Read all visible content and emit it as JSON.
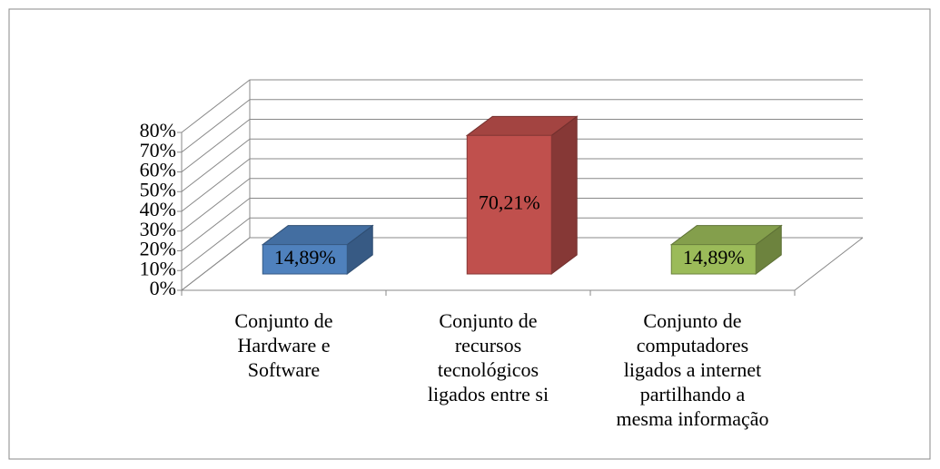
{
  "chart_data": {
    "type": "bar3d",
    "categories": [
      "Conjunto de\nHardware e\nSoftware",
      "Conjunto de\nrecursos\ntecnológicos\nligados entre si",
      "Conjunto de\ncomputadores\nligados a internet\npartilhando a\nmesma informação"
    ],
    "values": [
      14.89,
      70.21,
      14.89
    ],
    "value_labels": [
      "14,89%",
      "70,21%",
      "14,89%"
    ],
    "colors": [
      "#4f81bd",
      "#c0504d",
      "#9bbb59"
    ],
    "ylim": [
      0,
      80
    ],
    "yticks": [
      {
        "value": 0,
        "label": "0%"
      },
      {
        "value": 10,
        "label": "10%"
      },
      {
        "value": 20,
        "label": "20%"
      },
      {
        "value": 30,
        "label": "30%"
      },
      {
        "value": 40,
        "label": "40%"
      },
      {
        "value": 50,
        "label": "50%"
      },
      {
        "value": 60,
        "label": "60%"
      },
      {
        "value": 70,
        "label": "70%"
      },
      {
        "value": 80,
        "label": "80%"
      }
    ],
    "grid": true
  }
}
